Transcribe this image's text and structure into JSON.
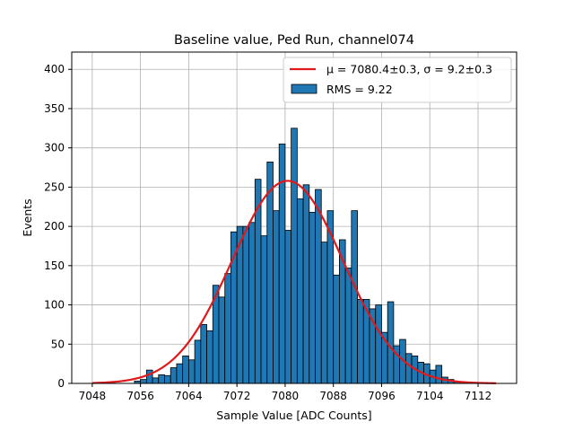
{
  "chart_data": {
    "type": "bar",
    "title": "Baseline value, Ped Run, channel074",
    "xlabel": "Sample Value [ADC Counts]",
    "ylabel": "Events",
    "xlim": [
      7044.6,
      7118.4
    ],
    "ylim": [
      0,
      422
    ],
    "grid": true,
    "legend_position": "top-right",
    "xticks": [
      7048,
      7056,
      7064,
      7072,
      7080,
      7088,
      7096,
      7104,
      7112
    ],
    "yticks": [
      0,
      50,
      100,
      150,
      200,
      250,
      300,
      350,
      400
    ],
    "histogram": {
      "name": "RMS = 9.22",
      "color": "#1f77b4",
      "edge_color": "#000000",
      "bin_width": 1,
      "bin_start": 7048,
      "values": [
        0,
        0,
        0,
        0,
        0,
        0,
        0,
        3,
        5,
        17,
        7,
        11,
        10,
        20,
        25,
        35,
        30,
        55,
        75,
        67,
        125,
        110,
        140,
        193,
        200,
        200,
        205,
        260,
        188,
        282,
        220,
        305,
        195,
        325,
        235,
        253,
        218,
        247,
        180,
        220,
        138,
        183,
        147,
        220,
        107,
        107,
        95,
        100,
        65,
        104,
        48,
        56,
        38,
        35,
        27,
        25,
        17,
        23,
        8,
        5,
        2,
        0,
        0,
        0,
        0,
        0,
        0,
        0
      ]
    },
    "fit": {
      "name": "μ = 7080.4±0.3, σ = 9.2±0.3",
      "color": "#e0191b",
      "mu": 7080.4,
      "sigma": 9.2,
      "amplitude": 258,
      "x_range": [
        7048,
        7115
      ]
    }
  }
}
